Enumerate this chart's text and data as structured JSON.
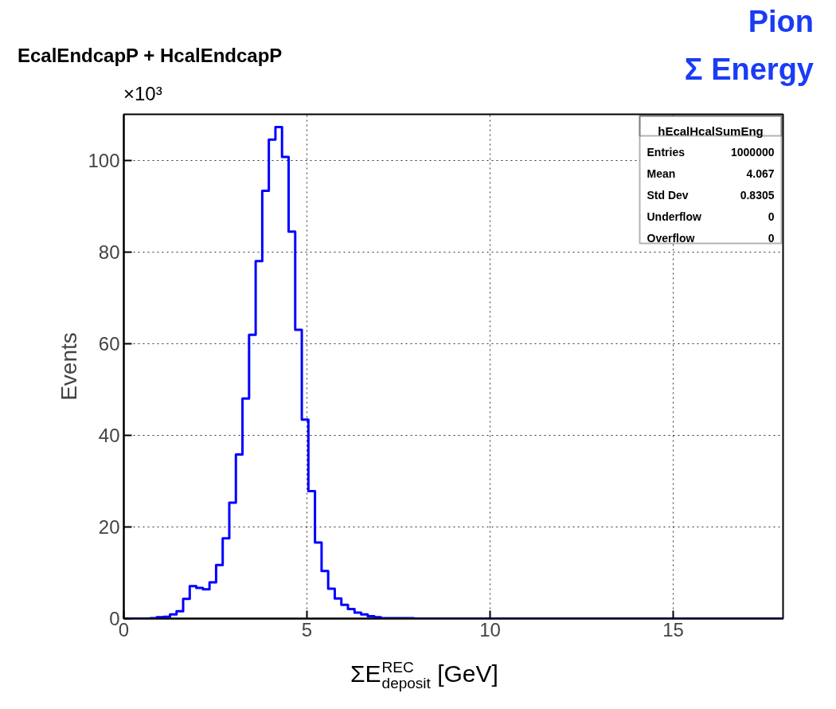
{
  "chart_data": {
    "type": "histogram",
    "title": "EcalEndcapP + HcalEndcapP",
    "xlabel": "ΣE$^{REC}$$_{deposit}$ [GeV]",
    "ylabel": "Events",
    "annotations": [
      "Pion",
      "Σ Energy",
      "×10³",
      "hEcalHcalSumEng",
      "Entries",
      "1000000",
      "Mean",
      "4.067",
      "Std Dev",
      "0.8305",
      "Underflow",
      "0",
      "Overflow",
      "0"
    ],
    "color": "#0000ff",
    "bins": [
      0,
      0.18,
      0.36,
      0.54,
      0.72,
      0.9,
      1.08,
      1.26,
      1.44,
      1.62,
      1.8,
      1.98,
      2.16,
      2.34,
      2.52,
      2.7,
      2.88,
      3.06,
      3.24,
      3.42,
      3.6,
      3.78,
      3.96,
      4.14,
      4.32,
      4.5,
      4.68,
      4.86,
      5.04,
      5.22,
      5.4,
      5.58,
      5.76,
      5.94,
      6.12,
      6.3,
      6.48,
      6.66,
      6.84,
      7.02,
      7.2,
      7.38,
      7.56,
      7.74,
      7.92,
      8.1,
      8.28,
      8.46,
      8.64,
      8.82,
      9,
      9.18,
      9.36,
      9.54,
      9.72,
      9.9,
      10.08,
      10.26,
      10.44,
      10.62,
      10.8,
      10.98,
      11.16,
      11.34,
      11.52,
      11.7,
      11.88,
      12.06,
      12.24,
      12.42,
      12.6,
      12.78,
      12.96,
      13.14,
      13.32,
      13.5,
      13.68,
      13.86,
      14.04,
      14.22,
      14.4,
      14.58,
      14.76,
      14.94,
      15.12,
      15.3,
      15.48,
      15.66,
      15.84,
      16.02,
      16.2,
      16.38,
      16.56,
      16.74,
      16.92,
      17.1,
      17.28,
      17.46,
      17.64,
      17.82,
      18
    ],
    "values": [
      0,
      0,
      0,
      0,
      0.1,
      0.3,
      0.4,
      0.9,
      1.6,
      4.3,
      7.1,
      6.7,
      6.4,
      7.9,
      11.7,
      17.5,
      25.3,
      35.8,
      48.0,
      61.9,
      78.0,
      93.3,
      104.5,
      107.2,
      100.7,
      84.4,
      63.0,
      43.4,
      27.8,
      16.6,
      10.4,
      6.5,
      4.4,
      3.0,
      2.1,
      1.3,
      0.9,
      0.5,
      0.3,
      0.1,
      0.1,
      0.1,
      0.1,
      0.1,
      0,
      0,
      0,
      0,
      0,
      0,
      0,
      0,
      0,
      0,
      0,
      0,
      0,
      0,
      0,
      0,
      0,
      0,
      0,
      0,
      0,
      0,
      0,
      0,
      0,
      0,
      0,
      0,
      0,
      0,
      0,
      0,
      0,
      0,
      0,
      0,
      0,
      0,
      0,
      0,
      0,
      0,
      0,
      0,
      0,
      0,
      0,
      0,
      0,
      0,
      0,
      0,
      0,
      0,
      0,
      0
    ],
    "xlim": [
      0,
      18
    ],
    "ylim": [
      0,
      110
    ],
    "xticks": [
      0,
      5,
      10,
      15
    ],
    "yticks": [
      0,
      20,
      40,
      60,
      80,
      100
    ],
    "grid": true
  }
}
